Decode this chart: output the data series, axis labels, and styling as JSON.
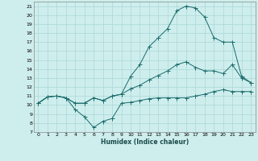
{
  "xlabel": "Humidex (Indice chaleur)",
  "xlim": [
    -0.5,
    23.5
  ],
  "ylim": [
    7,
    21.5
  ],
  "yticks": [
    7,
    8,
    9,
    10,
    11,
    12,
    13,
    14,
    15,
    16,
    17,
    18,
    19,
    20,
    21
  ],
  "xticks": [
    0,
    1,
    2,
    3,
    4,
    5,
    6,
    7,
    8,
    9,
    10,
    11,
    12,
    13,
    14,
    15,
    16,
    17,
    18,
    19,
    20,
    21,
    22,
    23
  ],
  "bg_color": "#ceeeed",
  "grid_color": "#b0dada",
  "line_color": "#1a6b6b",
  "curve1_x": [
    0,
    1,
    2,
    3,
    4,
    5,
    6,
    7,
    8,
    9,
    10,
    11,
    12,
    13,
    14,
    15,
    16,
    17,
    18,
    19,
    20,
    21,
    22,
    23
  ],
  "curve1_y": [
    10.2,
    10.9,
    11.0,
    10.8,
    9.5,
    8.7,
    7.5,
    8.2,
    8.5,
    10.2,
    10.3,
    10.5,
    10.7,
    10.8,
    10.8,
    10.8,
    10.8,
    11.0,
    11.2,
    11.5,
    11.7,
    11.5,
    11.5,
    11.5
  ],
  "curve2_x": [
    0,
    1,
    2,
    3,
    4,
    5,
    6,
    7,
    8,
    9,
    10,
    11,
    12,
    13,
    14,
    15,
    16,
    17,
    18,
    19,
    20,
    21,
    22,
    23
  ],
  "curve2_y": [
    10.2,
    10.9,
    11.0,
    10.8,
    10.2,
    10.2,
    10.8,
    10.5,
    11.0,
    11.2,
    11.8,
    12.2,
    12.8,
    13.3,
    13.8,
    14.5,
    14.8,
    14.2,
    13.8,
    13.8,
    13.5,
    14.5,
    13.0,
    12.5
  ],
  "curve3_x": [
    0,
    1,
    2,
    3,
    4,
    5,
    6,
    7,
    8,
    9,
    10,
    11,
    12,
    13,
    14,
    15,
    16,
    17,
    18,
    19,
    20,
    21,
    22,
    23
  ],
  "curve3_y": [
    10.2,
    10.9,
    11.0,
    10.8,
    10.2,
    10.2,
    10.8,
    10.5,
    11.0,
    11.2,
    13.2,
    14.5,
    16.5,
    17.5,
    18.5,
    20.5,
    21.0,
    20.8,
    19.8,
    17.5,
    17.0,
    17.0,
    13.2,
    12.5
  ]
}
